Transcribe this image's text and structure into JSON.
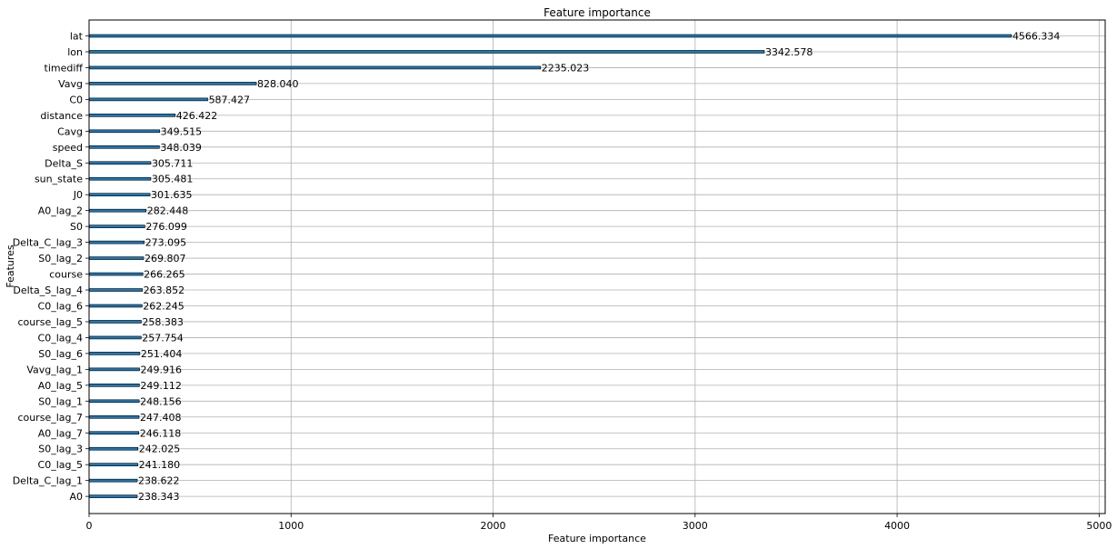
{
  "chart_data": {
    "type": "bar",
    "orientation": "horizontal",
    "title": "Feature importance",
    "xlabel": "Feature importance",
    "ylabel": "Features",
    "xlim": [
      0,
      5030
    ],
    "x_ticks": [
      0,
      1000,
      2000,
      3000,
      4000,
      5000
    ],
    "grid": true,
    "bar_color": "#1f77b4",
    "categories": [
      "lat",
      "lon",
      "timediff",
      "Vavg",
      "C0",
      "distance",
      "Cavg",
      "speed",
      "Delta_S",
      "sun_state",
      "J0",
      "A0_lag_2",
      "S0",
      "Delta_C_lag_3",
      "S0_lag_2",
      "course",
      "Delta_S_lag_4",
      "C0_lag_6",
      "course_lag_5",
      "C0_lag_4",
      "S0_lag_6",
      "Vavg_lag_1",
      "A0_lag_5",
      "S0_lag_1",
      "course_lag_7",
      "A0_lag_7",
      "S0_lag_3",
      "C0_lag_5",
      "Delta_C_lag_1",
      "A0"
    ],
    "values": [
      4566.334,
      3342.578,
      2235.023,
      828.04,
      587.427,
      426.422,
      349.515,
      348.039,
      305.711,
      305.481,
      301.635,
      282.448,
      276.099,
      273.095,
      269.807,
      266.265,
      263.852,
      262.245,
      258.383,
      257.754,
      251.404,
      249.916,
      249.112,
      248.156,
      247.408,
      246.118,
      242.025,
      241.18,
      238.622,
      238.343
    ],
    "value_labels": [
      "4566.334",
      "3342.578",
      "2235.023",
      "828.040",
      "587.427",
      "426.422",
      "349.515",
      "348.039",
      "305.711",
      "305.481",
      "301.635",
      "282.448",
      "276.099",
      "273.095",
      "269.807",
      "266.265",
      "263.852",
      "262.245",
      "258.383",
      "257.754",
      "251.404",
      "249.916",
      "249.112",
      "248.156",
      "247.408",
      "246.118",
      "242.025",
      "241.180",
      "238.622",
      "238.343"
    ]
  }
}
